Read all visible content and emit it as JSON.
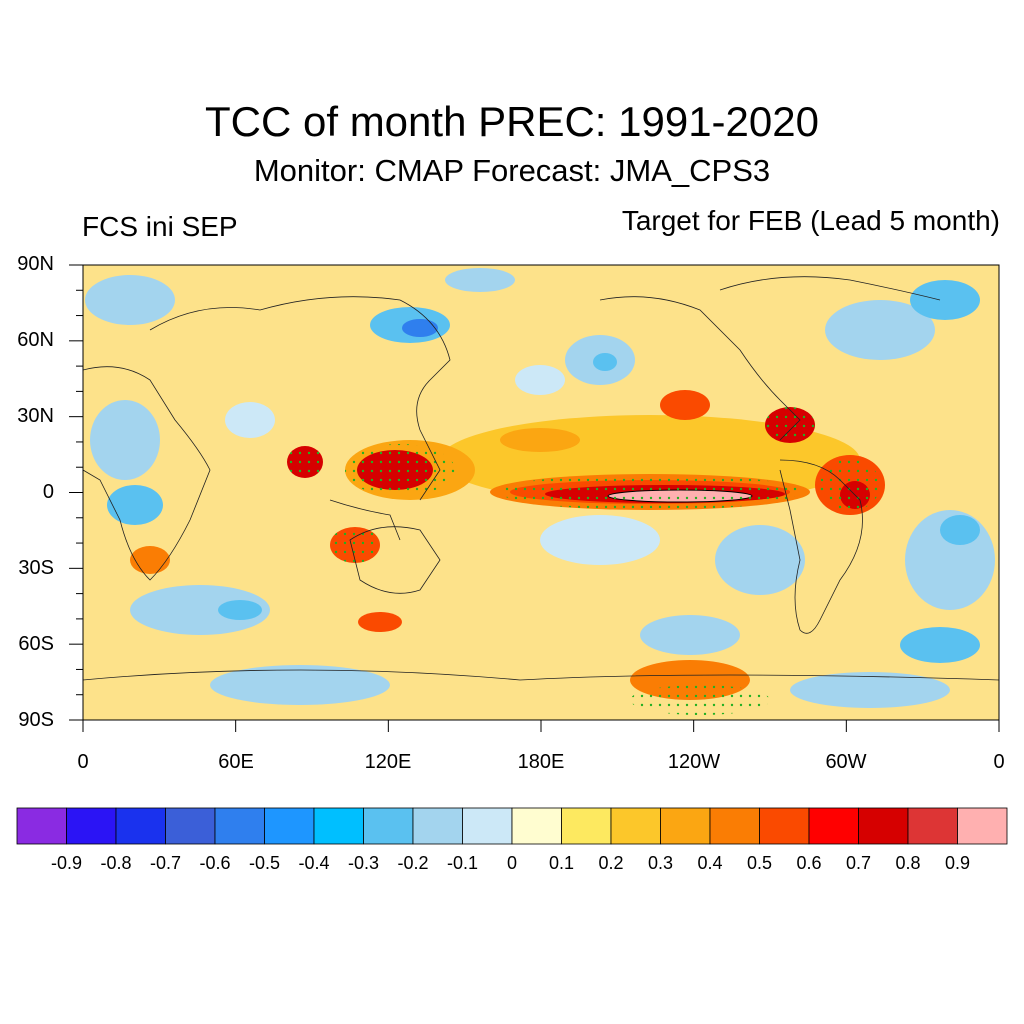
{
  "title": "TCC of month PREC: 1991-2020",
  "subtitle": "Monitor: CMAP   Forecast: JMA_CPS3",
  "left_label": "FCS ini SEP",
  "right_label": "Target for FEB (Lead 5 month)",
  "lat_ticks": [
    "90N",
    "60N",
    "30N",
    "0",
    "30S",
    "60S",
    "90S"
  ],
  "lon_ticks": [
    "0",
    "60E",
    "120E",
    "180E",
    "120W",
    "60W",
    "0"
  ],
  "colorbar": {
    "labels": [
      "-0.9",
      "-0.8",
      "-0.7",
      "-0.6",
      "-0.5",
      "-0.4",
      "-0.3",
      "-0.2",
      "-0.1",
      "0",
      "0.1",
      "0.2",
      "0.3",
      "0.4",
      "0.5",
      "0.6",
      "0.7",
      "0.8",
      "0.9"
    ],
    "colors": [
      "#8a2be2",
      "#2b14f5",
      "#1a32ee",
      "#3b5fd8",
      "#2f7fee",
      "#1e96ff",
      "#00bfff",
      "#5ac1f0",
      "#a3d4ee",
      "#cce8f7",
      "#fffdd0",
      "#fde960",
      "#fcc72a",
      "#fba612",
      "#fa7d04",
      "#fa4a00",
      "#ff0000",
      "#d60000",
      "#dd3535",
      "#ffb0b0"
    ]
  }
}
